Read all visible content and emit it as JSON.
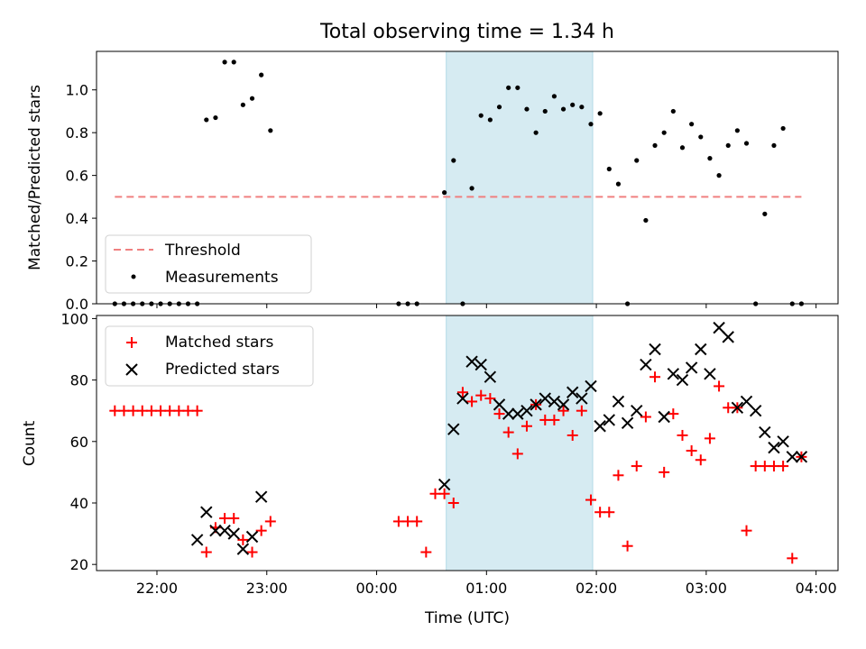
{
  "chart_data": [
    {
      "type": "scatter",
      "panel": "top",
      "title": "Total observing time = 1.34 h",
      "ylabel": "Matched/Predicted stars",
      "ylim": [
        0,
        1.18
      ],
      "xlim": [
        "21:27",
        "04:12"
      ],
      "yticks": [
        "0.0",
        "0.2",
        "0.4",
        "0.6",
        "0.8",
        "1.0"
      ],
      "ytick_values": [
        0,
        0.2,
        0.4,
        0.6,
        0.8,
        1.0
      ],
      "highlight_span": {
        "start": "00:38",
        "end": "01:58",
        "color": "#add8e6"
      },
      "legend": {
        "placement": "lower-left",
        "entries": [
          "Threshold",
          "Measurements"
        ]
      },
      "series": [
        {
          "name": "Threshold",
          "style": "dashed-line",
          "color": "#f08080",
          "x": [
            "21:37",
            "03:52"
          ],
          "y": [
            0.5,
            0.5
          ]
        },
        {
          "name": "Measurements",
          "style": "dot",
          "color": "#000000",
          "x": [
            "21:37",
            "21:42",
            "21:47",
            "21:52",
            "21:57",
            "22:02",
            "22:07",
            "22:12",
            "22:17",
            "22:22",
            "22:27",
            "22:32",
            "22:37",
            "22:42",
            "22:47",
            "22:52",
            "22:57",
            "23:02",
            "00:12",
            "00:17",
            "00:22",
            "00:37",
            "00:42",
            "00:47",
            "00:52",
            "00:57",
            "01:02",
            "01:07",
            "01:12",
            "01:17",
            "01:22",
            "01:27",
            "01:32",
            "01:37",
            "01:42",
            "01:47",
            "01:52",
            "01:57",
            "02:02",
            "02:07",
            "02:12",
            "02:17",
            "02:22",
            "02:27",
            "02:32",
            "02:37",
            "02:42",
            "02:47",
            "02:52",
            "02:57",
            "03:02",
            "03:07",
            "03:12",
            "03:17",
            "03:22",
            "03:27",
            "03:32",
            "03:37",
            "03:42",
            "03:47",
            "03:52"
          ],
          "y": [
            0.0,
            0.0,
            0.0,
            0.0,
            0.0,
            0.0,
            0.0,
            0.0,
            0.0,
            0.0,
            0.86,
            0.87,
            1.13,
            1.13,
            0.93,
            0.96,
            1.07,
            0.81,
            0.0,
            0.0,
            0.0,
            0.52,
            0.67,
            0.0,
            0.54,
            0.88,
            0.86,
            0.92,
            1.01,
            1.01,
            0.91,
            0.8,
            0.9,
            0.97,
            0.91,
            0.93,
            0.92,
            0.84,
            0.89,
            0.63,
            0.56,
            0.0,
            0.67,
            0.39,
            0.74,
            0.8,
            0.9,
            0.73,
            0.84,
            0.78,
            0.68,
            0.6,
            0.74,
            0.81,
            0.75,
            0.0,
            0.42,
            0.74,
            0.82,
            0.0,
            0.0
          ]
        }
      ]
    },
    {
      "type": "scatter",
      "panel": "bottom",
      "xlabel": "Time (UTC)",
      "ylabel": "Count",
      "ylim": [
        18,
        101
      ],
      "xlim": [
        "21:27",
        "04:12"
      ],
      "xticks": [
        "22:00",
        "23:00",
        "00:00",
        "01:00",
        "02:00",
        "03:00",
        "04:00"
      ],
      "yticks": [
        "20",
        "40",
        "60",
        "80",
        "100"
      ],
      "ytick_values": [
        20,
        40,
        60,
        80,
        100
      ],
      "highlight_span": {
        "start": "00:38",
        "end": "01:58",
        "color": "#add8e6"
      },
      "legend": {
        "placement": "upper-left",
        "entries": [
          "Matched stars",
          "Predicted stars"
        ]
      },
      "series": [
        {
          "name": "Matched stars",
          "marker": "plus",
          "color": "#ff0000",
          "x": [
            "21:37",
            "21:42",
            "21:47",
            "21:52",
            "21:57",
            "22:02",
            "22:07",
            "22:12",
            "22:17",
            "22:22",
            "22:27",
            "22:32",
            "22:37",
            "22:42",
            "22:47",
            "22:52",
            "22:57",
            "23:02",
            "00:12",
            "00:17",
            "00:22",
            "00:27",
            "00:32",
            "00:37",
            "00:42",
            "00:47",
            "00:52",
            "00:57",
            "01:02",
            "01:07",
            "01:12",
            "01:17",
            "01:22",
            "01:27",
            "01:32",
            "01:37",
            "01:42",
            "01:47",
            "01:52",
            "01:57",
            "02:02",
            "02:07",
            "02:12",
            "02:17",
            "02:22",
            "02:27",
            "02:32",
            "02:37",
            "02:42",
            "02:47",
            "02:52",
            "02:57",
            "03:02",
            "03:07",
            "03:12",
            "03:17",
            "03:22",
            "03:27",
            "03:32",
            "03:37",
            "03:42",
            "03:47",
            "03:52"
          ],
          "y": [
            70,
            70,
            70,
            70,
            70,
            70,
            70,
            70,
            70,
            70,
            24,
            32,
            35,
            35,
            28,
            24,
            31,
            34,
            34,
            34,
            34,
            24,
            43,
            43,
            40,
            76,
            73,
            75,
            74,
            69,
            63,
            56,
            65,
            72,
            67,
            67,
            70,
            62,
            70,
            41,
            37,
            37,
            49,
            26,
            52,
            68,
            81,
            50,
            69,
            62,
            57,
            54,
            61,
            78,
            71,
            71,
            31,
            52,
            52,
            52,
            52,
            22,
            55
          ]
        },
        {
          "name": "Predicted stars",
          "marker": "x",
          "color": "#000000",
          "x": [
            "22:22",
            "22:27",
            "22:32",
            "22:37",
            "22:42",
            "22:47",
            "22:52",
            "22:57",
            "00:37",
            "00:42",
            "00:47",
            "00:52",
            "00:57",
            "01:02",
            "01:07",
            "01:12",
            "01:17",
            "01:22",
            "01:27",
            "01:32",
            "01:37",
            "01:42",
            "01:47",
            "01:52",
            "01:57",
            "02:02",
            "02:07",
            "02:12",
            "02:17",
            "02:22",
            "02:27",
            "02:32",
            "02:37",
            "02:42",
            "02:47",
            "02:52",
            "02:57",
            "03:02",
            "03:07",
            "03:12",
            "03:17",
            "03:22",
            "03:27",
            "03:32",
            "03:37",
            "03:42",
            "03:47",
            "03:52"
          ],
          "y": [
            28,
            37,
            31,
            31,
            30,
            25,
            29,
            42,
            46,
            64,
            74,
            86,
            85,
            81,
            72,
            69,
            69,
            70,
            72,
            74,
            73,
            72,
            76,
            74,
            78,
            65,
            67,
            73,
            66,
            70,
            85,
            90,
            68,
            82,
            80,
            84,
            90,
            82,
            97,
            94,
            71,
            73,
            70,
            63,
            58,
            60,
            55,
            55
          ]
        }
      ]
    }
  ]
}
